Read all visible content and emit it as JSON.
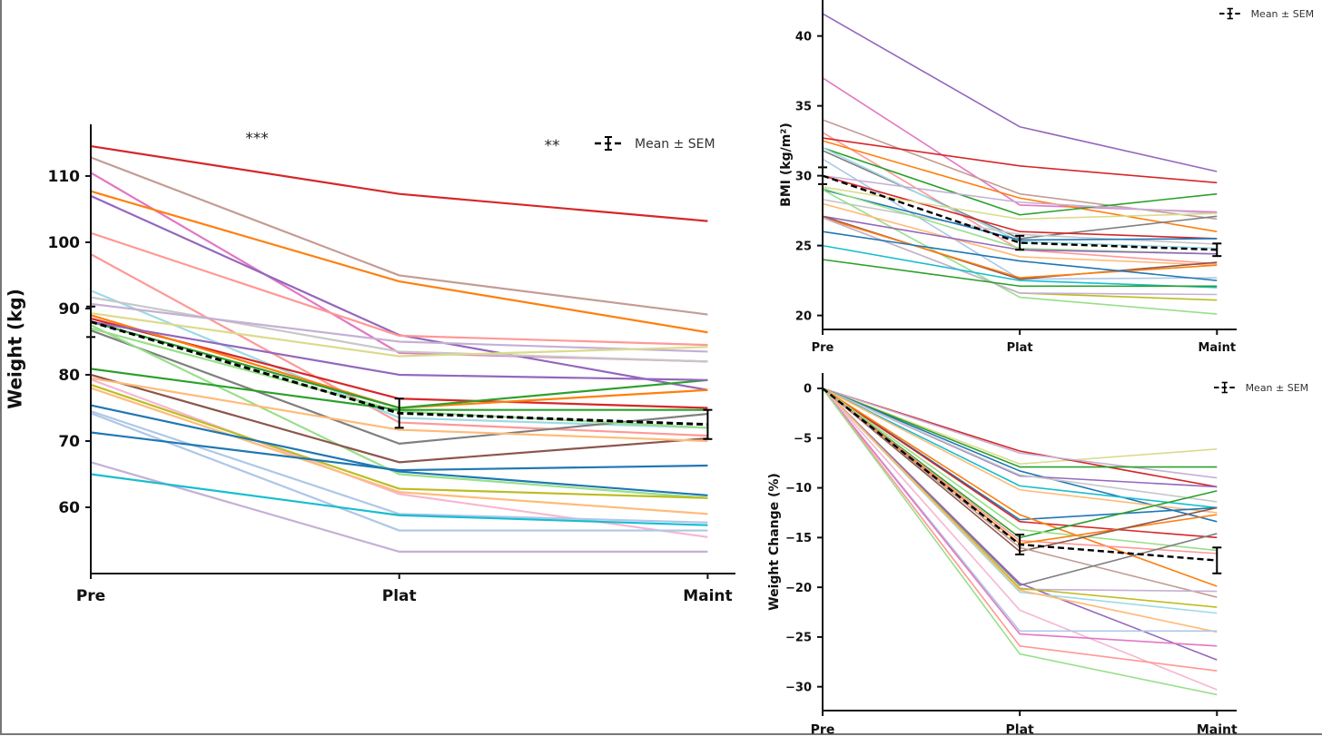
{
  "chart_data": [
    {
      "type": "line",
      "title": "",
      "xlabel": "",
      "ylabel": "Weight (kg)",
      "categories": [
        "Pre",
        "Plat",
        "Maint"
      ],
      "xlim": [
        0,
        2.09
      ],
      "ylim": [
        50,
        117.8
      ],
      "yticks": [
        60,
        70,
        80,
        90,
        100,
        110
      ],
      "grid": false,
      "legend": {
        "label": "Mean ± SEM",
        "placement": "top-right"
      },
      "annotations": [
        {
          "text": "***",
          "between": "Pre-Plat"
        },
        {
          "text": "**",
          "between": "Plat-Maint"
        }
      ],
      "series": [
        {
          "color": "#d62728",
          "values": [
            114.5,
            107.3,
            103.2
          ]
        },
        {
          "color": "#c49c94",
          "values": [
            112.8,
            95.0,
            89.1
          ]
        },
        {
          "color": "#e377c2",
          "values": [
            110.5,
            83.3,
            82.0
          ]
        },
        {
          "color": "#ff7f0e",
          "values": [
            107.7,
            94.1,
            86.4
          ]
        },
        {
          "color": "#9467bd",
          "values": [
            107.0,
            86.0,
            77.7
          ]
        },
        {
          "color": "#ff9896",
          "values": [
            101.4,
            85.9,
            84.5
          ]
        },
        {
          "color": "#ff9896",
          "values": [
            98.2,
            72.8,
            70.8
          ]
        },
        {
          "color": "#9edae5",
          "values": [
            92.7,
            73.5,
            72.0
          ]
        },
        {
          "color": "#c7c7c7",
          "values": [
            91.7,
            83.5,
            82.0
          ]
        },
        {
          "color": "#c5b0d5",
          "values": [
            90.7,
            85.0,
            83.5
          ]
        },
        {
          "color": "#dbdb8d",
          "values": [
            89.3,
            82.8,
            84.2
          ]
        },
        {
          "color": "#d62728",
          "values": [
            88.5,
            76.4,
            75.0
          ]
        },
        {
          "color": "#ff7f0e",
          "values": [
            89.0,
            75.0,
            77.7
          ]
        },
        {
          "color": "#2ca02c",
          "values": [
            88.0,
            75.0,
            79.2
          ]
        },
        {
          "color": "#9467bd",
          "values": [
            88.0,
            80.0,
            79.2
          ]
        },
        {
          "color": "#7f7f7f",
          "values": [
            86.7,
            69.6,
            74.1
          ]
        },
        {
          "color": "#98df8a",
          "values": [
            87.0,
            74.5,
            72.0
          ]
        },
        {
          "color": "#98df8a",
          "values": [
            87.5,
            65.0,
            61.4
          ]
        },
        {
          "color": "#2ca02c",
          "values": [
            80.9,
            74.7,
            74.7
          ]
        },
        {
          "color": "#8c564b",
          "values": [
            80.0,
            66.8,
            70.4
          ]
        },
        {
          "color": "#ffbb78",
          "values": [
            79.5,
            71.7,
            70.0
          ]
        },
        {
          "color": "#f7b6d2",
          "values": [
            79.3,
            62.0,
            55.5
          ]
        },
        {
          "color": "#bcbd22",
          "values": [
            78.5,
            62.8,
            61.4
          ]
        },
        {
          "color": "#ffbb78",
          "values": [
            78.0,
            62.3,
            59.0
          ]
        },
        {
          "color": "#1f77b4",
          "values": [
            75.4,
            65.4,
            61.8
          ]
        },
        {
          "color": "#aec7e8",
          "values": [
            74.5,
            59.0,
            57.7
          ]
        },
        {
          "color": "#aec7e8",
          "values": [
            74.2,
            56.5,
            56.5
          ]
        },
        {
          "color": "#1f77b4",
          "values": [
            71.3,
            65.6,
            66.3
          ]
        },
        {
          "color": "#c5b0d5",
          "values": [
            66.8,
            53.3,
            53.3
          ]
        },
        {
          "color": "#17becf",
          "values": [
            65.0,
            58.8,
            57.3
          ]
        }
      ],
      "mean": {
        "values": [
          88.0,
          74.2,
          72.5
        ],
        "sem": [
          2.3,
          2.2,
          2.2
        ],
        "color": "#000000"
      }
    },
    {
      "type": "line",
      "title": "",
      "xlabel": "",
      "ylabel": "BMI (kg/m²)",
      "categories": [
        "Pre",
        "Plat",
        "Maint"
      ],
      "xlim": [
        0,
        2.1
      ],
      "ylim": [
        19.0,
        42.9
      ],
      "yticks": [
        20,
        25,
        30,
        35,
        40
      ],
      "grid": false,
      "legend": {
        "label": "Mean ± SEM",
        "placement": "top-right"
      },
      "series": [
        {
          "color": "#9467bd",
          "values": [
            41.6,
            33.5,
            30.3
          ]
        },
        {
          "color": "#e377c2",
          "values": [
            37.0,
            27.9,
            27.4
          ]
        },
        {
          "color": "#c49c94",
          "values": [
            34.0,
            28.7,
            26.9
          ]
        },
        {
          "color": "#ff9896",
          "values": [
            33.1,
            24.7,
            23.7
          ]
        },
        {
          "color": "#d62728",
          "values": [
            32.7,
            30.7,
            29.5
          ]
        },
        {
          "color": "#ff7f0e",
          "values": [
            32.5,
            28.4,
            26.0
          ]
        },
        {
          "color": "#2ca02c",
          "values": [
            32.0,
            27.2,
            28.7
          ]
        },
        {
          "color": "#7f7f7f",
          "values": [
            31.8,
            25.5,
            27.1
          ]
        },
        {
          "color": "#9edae5",
          "values": [
            32.0,
            25.3,
            24.8
          ]
        },
        {
          "color": "#aec7e8",
          "values": [
            31.2,
            22.6,
            22.7
          ]
        },
        {
          "color": "#c5b0d5",
          "values": [
            30.0,
            28.1,
            27.3
          ]
        },
        {
          "color": "#d62728",
          "values": [
            30.0,
            26.0,
            25.5
          ]
        },
        {
          "color": "#dbdb8d",
          "values": [
            29.2,
            26.9,
            27.3
          ]
        },
        {
          "color": "#c7c7c7",
          "values": [
            28.3,
            25.8,
            25.1
          ]
        },
        {
          "color": "#1f77b4",
          "values": [
            29.0,
            25.4,
            25.5
          ]
        },
        {
          "color": "#98df8a",
          "values": [
            29.0,
            21.3,
            20.1
          ]
        },
        {
          "color": "#98df8a",
          "values": [
            29.1,
            24.8,
            24.4
          ]
        },
        {
          "color": "#ffbb78",
          "values": [
            28.0,
            24.2,
            23.6
          ]
        },
        {
          "color": "#9467bd",
          "values": [
            27.1,
            24.7,
            24.4
          ]
        },
        {
          "color": "#8c564b",
          "values": [
            27.1,
            22.6,
            23.8
          ]
        },
        {
          "color": "#ff7f0e",
          "values": [
            27.0,
            22.7,
            23.6
          ]
        },
        {
          "color": "#bcbd22",
          "values": [
            27.0,
            21.6,
            21.1
          ]
        },
        {
          "color": "#c5b0d5",
          "values": [
            27.0,
            21.6,
            21.5
          ]
        },
        {
          "color": "#1f77b4",
          "values": [
            26.0,
            23.9,
            22.5
          ]
        },
        {
          "color": "#17becf",
          "values": [
            25.0,
            22.5,
            22.0
          ]
        },
        {
          "color": "#2ca02c",
          "values": [
            24.0,
            22.1,
            22.1
          ]
        }
      ],
      "mean": {
        "values": [
          30.0,
          25.2,
          24.7
        ],
        "sem": [
          0.6,
          0.5,
          0.45
        ],
        "color": "#000000"
      }
    },
    {
      "type": "line",
      "title": "",
      "xlabel": "",
      "ylabel": "Weight Change (%)",
      "categories": [
        "Pre",
        "Plat",
        "Maint"
      ],
      "xlim": [
        0,
        2.1
      ],
      "ylim": [
        -32.4,
        1.55
      ],
      "yticks": [
        0,
        -5,
        -10,
        -15,
        -20,
        -25,
        -30
      ],
      "grid": false,
      "legend": {
        "label": "Mean ± SEM",
        "placement": "top-right"
      },
      "series": [
        {
          "color": "#dbdb8d",
          "values": [
            0,
            -7.6,
            -6.1
          ]
        },
        {
          "color": "#d62728",
          "values": [
            0,
            -6.3,
            -9.9
          ]
        },
        {
          "color": "#c5b0d5",
          "values": [
            0,
            -6.5,
            -9.0
          ]
        },
        {
          "color": "#2ca02c",
          "values": [
            0,
            -7.9,
            -7.9
          ]
        },
        {
          "color": "#1f77b4",
          "values": [
            0,
            -8.3,
            -13.4
          ]
        },
        {
          "color": "#9467bd",
          "values": [
            0,
            -8.8,
            -9.9
          ]
        },
        {
          "color": "#c7c7c7",
          "values": [
            0,
            -8.7,
            -11.4
          ]
        },
        {
          "color": "#17becf",
          "values": [
            0,
            -9.8,
            -12.0
          ]
        },
        {
          "color": "#ffbb78",
          "values": [
            0,
            -10.2,
            -12.5
          ]
        },
        {
          "color": "#1f77b4",
          "values": [
            0,
            -13.2,
            -12.0
          ]
        },
        {
          "color": "#d62728",
          "values": [
            0,
            -13.4,
            -15.0
          ]
        },
        {
          "color": "#ff7f0e",
          "values": [
            0,
            -12.7,
            -19.9
          ]
        },
        {
          "color": "#2ca02c",
          "values": [
            0,
            -15.0,
            -10.3
          ]
        },
        {
          "color": "#98df8a",
          "values": [
            0,
            -14.2,
            -16.3
          ]
        },
        {
          "color": "#ff9896",
          "values": [
            0,
            -15.3,
            -16.6
          ]
        },
        {
          "color": "#ff7f0e",
          "values": [
            0,
            -15.6,
            -12.7
          ]
        },
        {
          "color": "#8c564b",
          "values": [
            0,
            -16.4,
            -12.0
          ]
        },
        {
          "color": "#c49c94",
          "values": [
            0,
            -16.0,
            -21.0
          ]
        },
        {
          "color": "#7f7f7f",
          "values": [
            0,
            -19.8,
            -14.6
          ]
        },
        {
          "color": "#9467bd",
          "values": [
            0,
            -19.6,
            -27.3
          ]
        },
        {
          "color": "#c5b0d5",
          "values": [
            0,
            -20.2,
            -20.4
          ]
        },
        {
          "color": "#bcbd22",
          "values": [
            0,
            -20.1,
            -22.0
          ]
        },
        {
          "color": "#9edae5",
          "values": [
            0,
            -20.5,
            -22.6
          ]
        },
        {
          "color": "#ffbb78",
          "values": [
            0,
            -20.3,
            -24.5
          ]
        },
        {
          "color": "#f7b6d2",
          "values": [
            0,
            -22.3,
            -30.3
          ]
        },
        {
          "color": "#aec7e8",
          "values": [
            0,
            -24.4,
            -24.4
          ]
        },
        {
          "color": "#e377c2",
          "values": [
            0,
            -24.7,
            -25.9
          ]
        },
        {
          "color": "#ff9896",
          "values": [
            0,
            -25.9,
            -28.4
          ]
        },
        {
          "color": "#98df8a",
          "values": [
            0,
            -26.7,
            -30.8
          ]
        }
      ],
      "mean": {
        "values": [
          0,
          -15.7,
          -17.3
        ],
        "sem": [
          0,
          1.0,
          1.3
        ],
        "color": "#000000"
      }
    }
  ]
}
